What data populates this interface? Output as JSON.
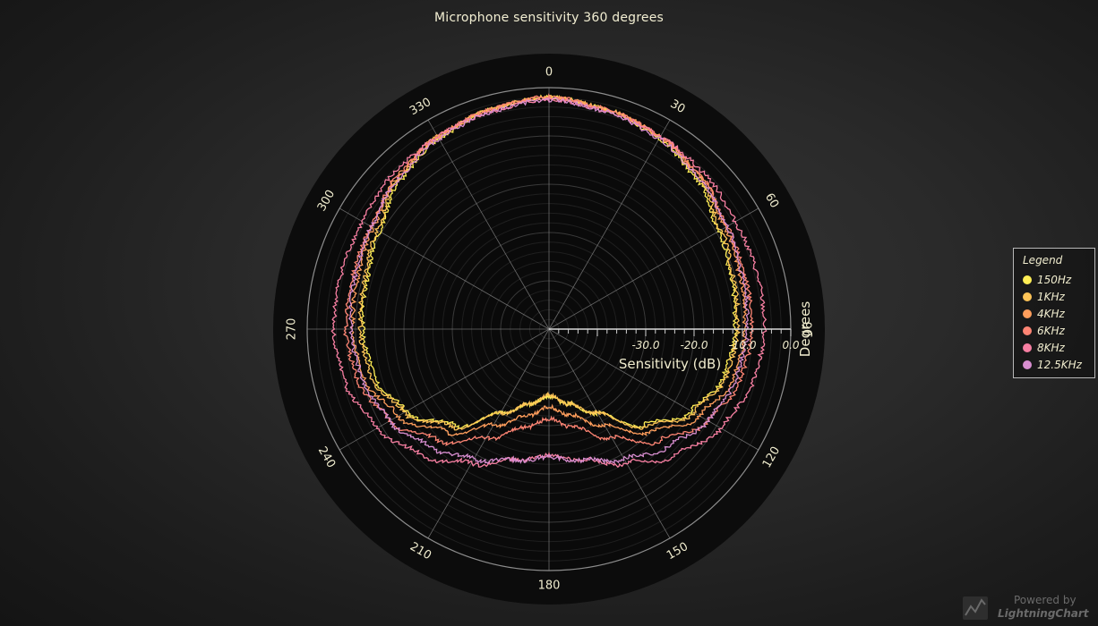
{
  "title": "Microphone sensitivity 360 degrees",
  "legend": {
    "title": "Legend",
    "items": [
      {
        "label": "150Hz",
        "color": "#ffee55"
      },
      {
        "label": "1KHz",
        "color": "#ffc457"
      },
      {
        "label": "4KHz",
        "color": "#ff9e5c"
      },
      {
        "label": "6KHz",
        "color": "#ff8574"
      },
      {
        "label": "8KHz",
        "color": "#f77fa2"
      },
      {
        "label": "12.5KHz",
        "color": "#d88ed0"
      }
    ]
  },
  "watermark": {
    "powered_by": "Powered by",
    "brand": "LightningChart"
  },
  "chart_data": {
    "type": "polar-line",
    "title": "Microphone sensitivity 360 degrees",
    "angle_axis_title": "Degrees",
    "radial_axis_title": "Sensitivity (dB)",
    "angle_ticks": [
      "0",
      "30",
      "60",
      "90",
      "120",
      "150",
      "180",
      "210",
      "240",
      "270",
      "300",
      "330"
    ],
    "radial_tick_labels": [
      "-30.0",
      "-20.0",
      "-10.0",
      "0.0"
    ],
    "radial_ticks": [
      -30,
      -20,
      -10,
      0
    ],
    "radial_range": [
      -50,
      0
    ],
    "angle_unit": "degrees",
    "angle_zero": "top",
    "direction": "clockwise",
    "series": [
      {
        "name": "150Hz",
        "color": "#ffee55",
        "angles": [
          0,
          15,
          30,
          45,
          60,
          75,
          90,
          105,
          120,
          135,
          150,
          165,
          180,
          195,
          210,
          225,
          240,
          255,
          270,
          285,
          300,
          315,
          330,
          345
        ],
        "values": [
          -2,
          -3,
          -4.5,
          -6.5,
          -9.5,
          -11,
          -11.5,
          -12.5,
          -16,
          -22,
          -30,
          -34,
          -36,
          -34,
          -30,
          -22,
          -16,
          -12.5,
          -11.5,
          -11,
          -9.5,
          -6.5,
          -4.5,
          -3
        ]
      },
      {
        "name": "1KHz",
        "color": "#ffc457",
        "angles": [
          0,
          15,
          30,
          45,
          60,
          75,
          90,
          105,
          120,
          135,
          150,
          165,
          180,
          195,
          210,
          225,
          240,
          255,
          270,
          285,
          300,
          315,
          330,
          345
        ],
        "values": [
          -2,
          -3,
          -4,
          -6,
          -9,
          -10.5,
          -11,
          -12,
          -15.5,
          -21.5,
          -30,
          -34,
          -36.5,
          -34,
          -30,
          -21.5,
          -15.5,
          -12,
          -11,
          -10.5,
          -9,
          -6,
          -4,
          -3
        ]
      },
      {
        "name": "4KHz",
        "color": "#ff9e5c",
        "angles": [
          0,
          15,
          30,
          45,
          60,
          75,
          90,
          105,
          120,
          135,
          150,
          165,
          180,
          195,
          210,
          225,
          240,
          255,
          270,
          285,
          300,
          315,
          330,
          345
        ],
        "values": [
          -2,
          -3,
          -4,
          -5.5,
          -8,
          -9,
          -9.5,
          -10.5,
          -14,
          -20,
          -27,
          -31.5,
          -34,
          -31.5,
          -27,
          -20,
          -14,
          -10.5,
          -9.5,
          -9,
          -8,
          -5.5,
          -4,
          -3
        ]
      },
      {
        "name": "6KHz",
        "color": "#ff8574",
        "angles": [
          0,
          15,
          30,
          45,
          60,
          75,
          90,
          105,
          120,
          135,
          150,
          165,
          180,
          195,
          210,
          225,
          240,
          255,
          270,
          285,
          300,
          315,
          330,
          345
        ],
        "values": [
          -2,
          -3,
          -4,
          -5.5,
          -7.5,
          -8,
          -8,
          -9,
          -12,
          -17.5,
          -24,
          -29,
          -31.5,
          -29,
          -24,
          -17.5,
          -12,
          -9,
          -8,
          -8,
          -7.5,
          -5.5,
          -4,
          -3
        ]
      },
      {
        "name": "8KHz",
        "color": "#f77fa2",
        "angles": [
          0,
          15,
          30,
          45,
          60,
          75,
          90,
          105,
          120,
          135,
          150,
          165,
          180,
          195,
          210,
          225,
          240,
          255,
          270,
          285,
          300,
          315,
          330,
          345
        ],
        "values": [
          -2.5,
          -3.5,
          -4,
          -4.5,
          -5.5,
          -5.5,
          -5.5,
          -6.5,
          -9,
          -13,
          -18,
          -22,
          -24,
          -22,
          -18,
          -13,
          -9,
          -6.5,
          -5.5,
          -5.5,
          -5.5,
          -4.5,
          -4,
          -3.5
        ]
      },
      {
        "name": "12.5KHz",
        "color": "#d88ed0",
        "angles": [
          0,
          15,
          30,
          45,
          60,
          75,
          90,
          105,
          120,
          135,
          150,
          165,
          180,
          195,
          210,
          225,
          240,
          255,
          270,
          285,
          300,
          315,
          330,
          345
        ],
        "values": [
          -2.5,
          -3.5,
          -4.5,
          -6,
          -7.5,
          -8.5,
          -9,
          -10,
          -12,
          -15.5,
          -19,
          -22,
          -23.5,
          -22,
          -19,
          -15.5,
          -12,
          -10,
          -9,
          -8.5,
          -7.5,
          -6,
          -4.5,
          -3.5
        ]
      }
    ],
    "legend_position": "right"
  }
}
